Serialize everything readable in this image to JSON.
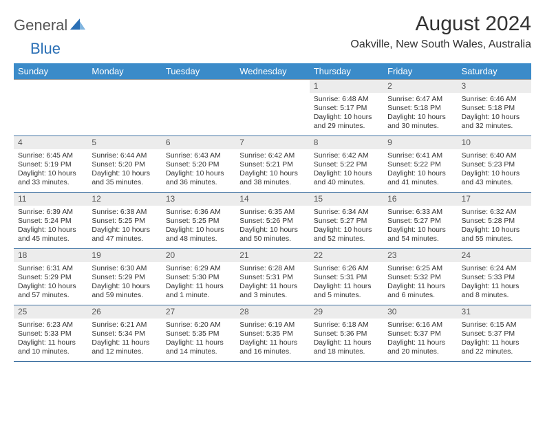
{
  "logo": {
    "gray": "General",
    "blue": "Blue"
  },
  "header": {
    "title": "August 2024",
    "location": "Oakville, New South Wales, Australia"
  },
  "colors": {
    "header_bg": "#3b8bc9",
    "header_text": "#ffffff",
    "daynum_bg": "#ececec",
    "row_divider": "#3b6fa0",
    "logo_blue": "#2a6fb5"
  },
  "weekdays": [
    "Sunday",
    "Monday",
    "Tuesday",
    "Wednesday",
    "Thursday",
    "Friday",
    "Saturday"
  ],
  "weeks": [
    [
      null,
      null,
      null,
      null,
      {
        "n": "1",
        "sr": "6:48 AM",
        "ss": "5:17 PM",
        "dl": "10 hours and 29 minutes."
      },
      {
        "n": "2",
        "sr": "6:47 AM",
        "ss": "5:18 PM",
        "dl": "10 hours and 30 minutes."
      },
      {
        "n": "3",
        "sr": "6:46 AM",
        "ss": "5:18 PM",
        "dl": "10 hours and 32 minutes."
      }
    ],
    [
      {
        "n": "4",
        "sr": "6:45 AM",
        "ss": "5:19 PM",
        "dl": "10 hours and 33 minutes."
      },
      {
        "n": "5",
        "sr": "6:44 AM",
        "ss": "5:20 PM",
        "dl": "10 hours and 35 minutes."
      },
      {
        "n": "6",
        "sr": "6:43 AM",
        "ss": "5:20 PM",
        "dl": "10 hours and 36 minutes."
      },
      {
        "n": "7",
        "sr": "6:42 AM",
        "ss": "5:21 PM",
        "dl": "10 hours and 38 minutes."
      },
      {
        "n": "8",
        "sr": "6:42 AM",
        "ss": "5:22 PM",
        "dl": "10 hours and 40 minutes."
      },
      {
        "n": "9",
        "sr": "6:41 AM",
        "ss": "5:22 PM",
        "dl": "10 hours and 41 minutes."
      },
      {
        "n": "10",
        "sr": "6:40 AM",
        "ss": "5:23 PM",
        "dl": "10 hours and 43 minutes."
      }
    ],
    [
      {
        "n": "11",
        "sr": "6:39 AM",
        "ss": "5:24 PM",
        "dl": "10 hours and 45 minutes."
      },
      {
        "n": "12",
        "sr": "6:38 AM",
        "ss": "5:25 PM",
        "dl": "10 hours and 47 minutes."
      },
      {
        "n": "13",
        "sr": "6:36 AM",
        "ss": "5:25 PM",
        "dl": "10 hours and 48 minutes."
      },
      {
        "n": "14",
        "sr": "6:35 AM",
        "ss": "5:26 PM",
        "dl": "10 hours and 50 minutes."
      },
      {
        "n": "15",
        "sr": "6:34 AM",
        "ss": "5:27 PM",
        "dl": "10 hours and 52 minutes."
      },
      {
        "n": "16",
        "sr": "6:33 AM",
        "ss": "5:27 PM",
        "dl": "10 hours and 54 minutes."
      },
      {
        "n": "17",
        "sr": "6:32 AM",
        "ss": "5:28 PM",
        "dl": "10 hours and 55 minutes."
      }
    ],
    [
      {
        "n": "18",
        "sr": "6:31 AM",
        "ss": "5:29 PM",
        "dl": "10 hours and 57 minutes."
      },
      {
        "n": "19",
        "sr": "6:30 AM",
        "ss": "5:29 PM",
        "dl": "10 hours and 59 minutes."
      },
      {
        "n": "20",
        "sr": "6:29 AM",
        "ss": "5:30 PM",
        "dl": "11 hours and 1 minute."
      },
      {
        "n": "21",
        "sr": "6:28 AM",
        "ss": "5:31 PM",
        "dl": "11 hours and 3 minutes."
      },
      {
        "n": "22",
        "sr": "6:26 AM",
        "ss": "5:31 PM",
        "dl": "11 hours and 5 minutes."
      },
      {
        "n": "23",
        "sr": "6:25 AM",
        "ss": "5:32 PM",
        "dl": "11 hours and 6 minutes."
      },
      {
        "n": "24",
        "sr": "6:24 AM",
        "ss": "5:33 PM",
        "dl": "11 hours and 8 minutes."
      }
    ],
    [
      {
        "n": "25",
        "sr": "6:23 AM",
        "ss": "5:33 PM",
        "dl": "11 hours and 10 minutes."
      },
      {
        "n": "26",
        "sr": "6:21 AM",
        "ss": "5:34 PM",
        "dl": "11 hours and 12 minutes."
      },
      {
        "n": "27",
        "sr": "6:20 AM",
        "ss": "5:35 PM",
        "dl": "11 hours and 14 minutes."
      },
      {
        "n": "28",
        "sr": "6:19 AM",
        "ss": "5:35 PM",
        "dl": "11 hours and 16 minutes."
      },
      {
        "n": "29",
        "sr": "6:18 AM",
        "ss": "5:36 PM",
        "dl": "11 hours and 18 minutes."
      },
      {
        "n": "30",
        "sr": "6:16 AM",
        "ss": "5:37 PM",
        "dl": "11 hours and 20 minutes."
      },
      {
        "n": "31",
        "sr": "6:15 AM",
        "ss": "5:37 PM",
        "dl": "11 hours and 22 minutes."
      }
    ]
  ],
  "labels": {
    "sunrise": "Sunrise: ",
    "sunset": "Sunset: ",
    "daylight": "Daylight: "
  }
}
